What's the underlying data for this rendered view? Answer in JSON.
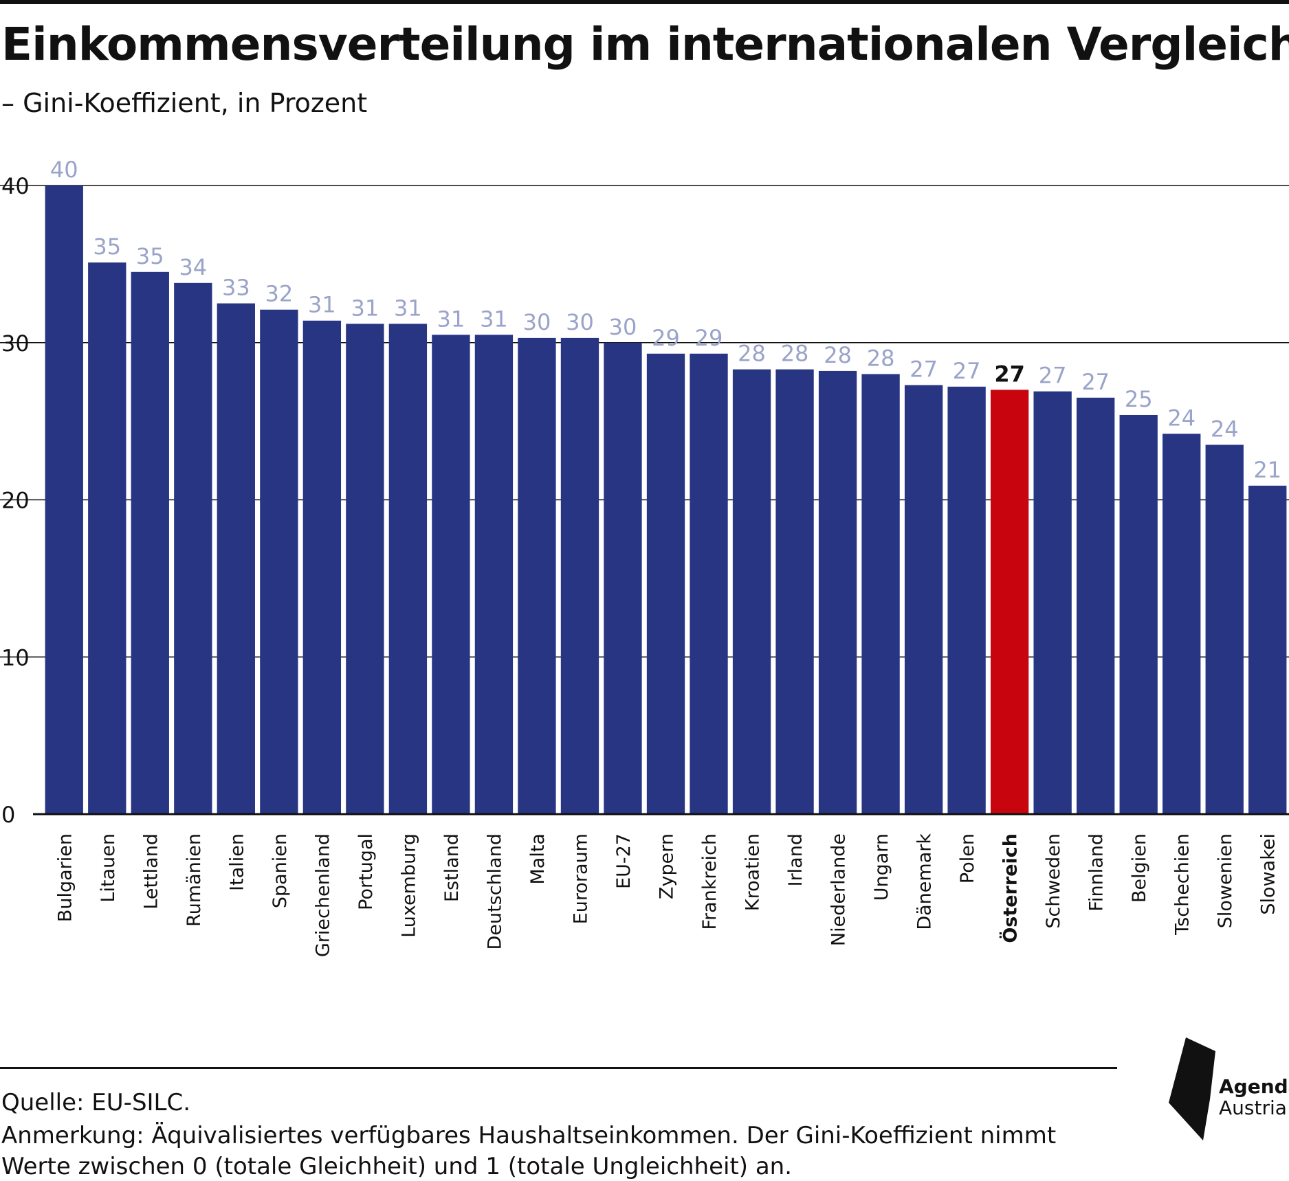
{
  "title": "Einkommensverteilung im internationalen Vergleich",
  "subtitle": "– Gini-Koeffizient, in Prozent",
  "colors": {
    "bar": "#283583",
    "highlight": "#c8050e",
    "value_label": "#9aa3c9",
    "highlight_label": "#111111",
    "grid": "#111111"
  },
  "chart_data": {
    "type": "bar",
    "categories": [
      "Bulgarien",
      "Litauen",
      "Lettland",
      "Rumänien",
      "Italien",
      "Spanien",
      "Griechenland",
      "Portugal",
      "Luxemburg",
      "Estland",
      "Deutschland",
      "Malta",
      "Euroraum",
      "EU-27",
      "Zypern",
      "Frankreich",
      "Kroatien",
      "Irland",
      "Niederlande",
      "Ungarn",
      "Dänemark",
      "Polen",
      "Österreich",
      "Schweden",
      "Finnland",
      "Belgien",
      "Tschechien",
      "Slowenien",
      "Slowakei"
    ],
    "values": [
      40.0,
      35.1,
      34.5,
      33.8,
      32.5,
      32.1,
      31.4,
      31.2,
      31.2,
      30.5,
      30.5,
      30.3,
      30.3,
      30.0,
      29.3,
      29.3,
      28.3,
      28.3,
      28.2,
      28.0,
      27.3,
      27.2,
      27.0,
      26.9,
      26.5,
      25.4,
      24.2,
      23.5,
      20.9
    ],
    "value_labels": [
      "40",
      "35",
      "35",
      "34",
      "33",
      "32",
      "31",
      "31",
      "31",
      "31",
      "31",
      "30",
      "30",
      "30",
      "29",
      "29",
      "28",
      "28",
      "28",
      "28",
      "27",
      "27",
      "27",
      "27",
      "27",
      "25",
      "24",
      "24",
      "21"
    ],
    "highlight": "Österreich",
    "yticks": [
      "0",
      "10",
      "20",
      "30",
      "40"
    ],
    "ylim": [
      0,
      40
    ],
    "grid": true,
    "xlabel": "",
    "ylabel": ""
  },
  "footer": {
    "source": "Quelle: EU-SILC.",
    "note_line1": "Anmerkung: Äquivalisiertes verfügbares Haushaltseinkommen. Der Gini-Koeffizient nimmt",
    "note_line2": "Werte zwischen 0 (totale Gleichheit) und 1 (totale Ungleichheit) an."
  },
  "logo": {
    "line1": "Agenda",
    "line2": "Austria"
  }
}
